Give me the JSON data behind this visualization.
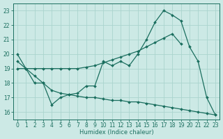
{
  "xlabel": "Humidex (Indice chaleur)",
  "bg_color": "#cce9e5",
  "grid_color": "#aad4ce",
  "line_color": "#1a6e5e",
  "xlim_min": -0.5,
  "xlim_max": 23.5,
  "ylim_min": 15.5,
  "ylim_max": 23.5,
  "xticks": [
    0,
    1,
    2,
    3,
    4,
    5,
    6,
    7,
    8,
    9,
    10,
    11,
    12,
    13,
    14,
    15,
    16,
    17,
    18,
    19,
    20,
    21,
    22,
    23
  ],
  "yticks": [
    16,
    17,
    18,
    19,
    20,
    21,
    22,
    23
  ],
  "line1_x": [
    0,
    1,
    2,
    3,
    4,
    5,
    6,
    7,
    8,
    9,
    10,
    11,
    12,
    13,
    14,
    15,
    16,
    17,
    18,
    19,
    20,
    21,
    22,
    23
  ],
  "line1_y": [
    20.0,
    19.0,
    18.0,
    18.0,
    16.5,
    17.0,
    17.2,
    17.3,
    17.8,
    17.8,
    19.5,
    19.2,
    19.5,
    19.2,
    20.0,
    21.0,
    22.2,
    23.0,
    22.7,
    22.3,
    20.5,
    19.5,
    17.0,
    15.8
  ],
  "line2_x": [
    0,
    1,
    2,
    3,
    4,
    5,
    6,
    7,
    8,
    9,
    10,
    11,
    12,
    13,
    14,
    15,
    16,
    17,
    18,
    19
  ],
  "line2_y": [
    19.0,
    19.0,
    19.0,
    19.0,
    19.0,
    19.0,
    19.0,
    19.0,
    19.1,
    19.2,
    19.4,
    19.6,
    19.8,
    20.0,
    20.2,
    20.5,
    20.8,
    21.1,
    21.4,
    20.7
  ],
  "line3_x": [
    0,
    1,
    2,
    3,
    4,
    5,
    6,
    7,
    8,
    9,
    10,
    11,
    12,
    13,
    14,
    15,
    16,
    17,
    18,
    19,
    20,
    21,
    22,
    23
  ],
  "line3_y": [
    19.5,
    19.0,
    18.5,
    18.0,
    17.5,
    17.3,
    17.2,
    17.1,
    17.0,
    17.0,
    16.9,
    16.8,
    16.8,
    16.7,
    16.7,
    16.6,
    16.5,
    16.4,
    16.3,
    16.2,
    16.1,
    16.0,
    15.9,
    15.8
  ],
  "linewidth": 0.9,
  "markersize": 2.0,
  "tick_fontsize": 5.5,
  "xlabel_fontsize": 6.0
}
